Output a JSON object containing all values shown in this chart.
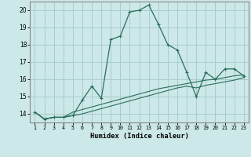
{
  "xlabel": "Humidex (Indice chaleur)",
  "x": [
    1,
    2,
    3,
    4,
    5,
    6,
    7,
    8,
    9,
    10,
    11,
    12,
    13,
    14,
    15,
    16,
    17,
    18,
    19,
    20,
    21,
    22,
    23
  ],
  "line1": [
    14.1,
    13.7,
    13.8,
    13.8,
    13.9,
    14.8,
    15.6,
    14.9,
    18.3,
    18.5,
    19.9,
    20.0,
    20.3,
    19.2,
    18.0,
    17.7,
    16.4,
    15.0,
    16.4,
    16.0,
    16.6,
    16.6,
    16.2
  ],
  "line2": [
    14.1,
    13.7,
    13.8,
    13.8,
    13.9,
    14.0,
    14.15,
    14.3,
    14.45,
    14.6,
    14.75,
    14.9,
    15.05,
    15.2,
    15.35,
    15.5,
    15.6,
    15.5,
    15.65,
    15.75,
    15.85,
    15.95,
    16.1
  ],
  "line3": [
    14.1,
    13.7,
    13.8,
    13.8,
    14.1,
    14.25,
    14.4,
    14.55,
    14.7,
    14.85,
    15.0,
    15.15,
    15.3,
    15.45,
    15.55,
    15.65,
    15.75,
    15.85,
    15.95,
    16.0,
    16.1,
    16.2,
    16.25
  ],
  "line_color": "#2a6e5e",
  "bg_color": "#cce8e8",
  "grid_color": "#aacccc",
  "ylim": [
    13.5,
    20.5
  ],
  "yticks": [
    14,
    15,
    16,
    17,
    18,
    19,
    20
  ],
  "xlim": [
    0.5,
    23.5
  ],
  "xticks": [
    1,
    2,
    3,
    4,
    5,
    6,
    7,
    8,
    9,
    10,
    11,
    12,
    13,
    14,
    15,
    16,
    17,
    18,
    19,
    20,
    21,
    22,
    23
  ]
}
